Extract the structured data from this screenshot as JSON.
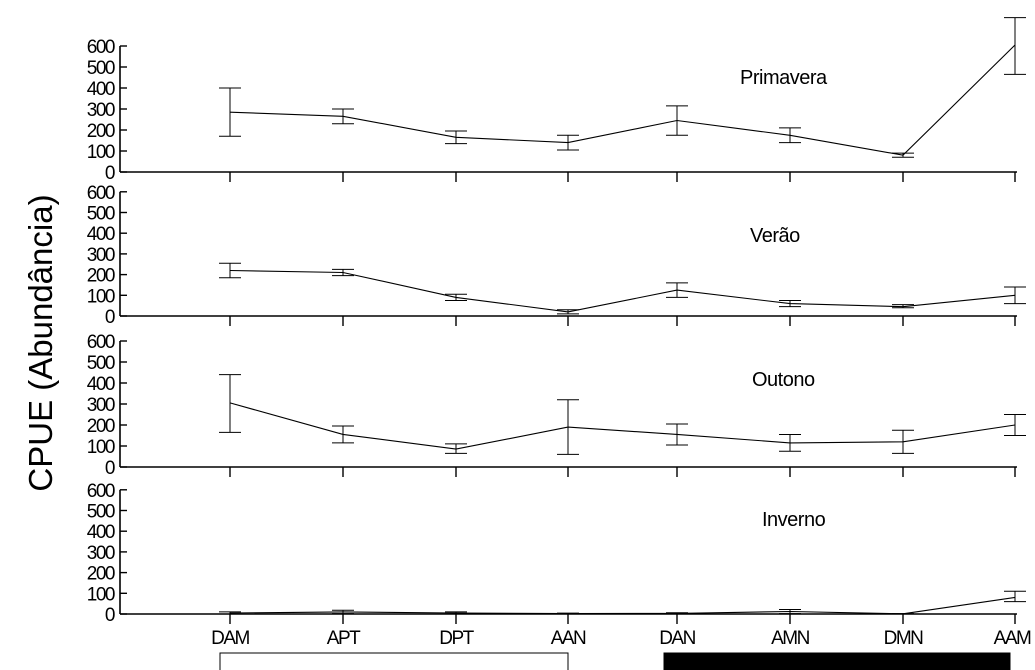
{
  "chart_data": {
    "type": "line",
    "ylabel": "CPUE (Abundância)",
    "categories": [
      "DAM",
      "APT",
      "DPT",
      "AAN",
      "DAN",
      "AMN",
      "DMN",
      "AAM"
    ],
    "yticks": [
      0,
      100,
      200,
      300,
      400,
      500,
      600
    ],
    "ylim": [
      0,
      600
    ],
    "grid": false,
    "legend": "none",
    "bottom_bars": [
      {
        "categories": [
          "DAM",
          "APT",
          "DPT",
          "AAN"
        ],
        "fill": "white"
      },
      {
        "categories": [
          "DAN",
          "AMN",
          "DMN",
          "AAM"
        ],
        "fill": "black"
      }
    ],
    "panels": [
      {
        "title": "Primavera",
        "values": [
          285,
          265,
          165,
          140,
          245,
          175,
          80,
          605
        ],
        "error_low": [
          170,
          230,
          135,
          105,
          175,
          140,
          70,
          465
        ],
        "error_high": [
          400,
          300,
          195,
          175,
          315,
          210,
          90,
          735
        ]
      },
      {
        "title": "Verão",
        "values": [
          220,
          210,
          90,
          20,
          125,
          60,
          45,
          100
        ],
        "error_low": [
          185,
          195,
          75,
          10,
          90,
          45,
          40,
          60
        ],
        "error_high": [
          255,
          225,
          105,
          30,
          160,
          75,
          55,
          140
        ]
      },
      {
        "title": "Outono",
        "values": [
          305,
          155,
          85,
          190,
          155,
          115,
          120,
          200
        ],
        "error_low": [
          165,
          115,
          65,
          60,
          105,
          75,
          65,
          150
        ],
        "error_high": [
          440,
          195,
          110,
          320,
          205,
          155,
          175,
          250
        ]
      },
      {
        "title": "Inverno",
        "values": [
          5,
          10,
          5,
          2,
          3,
          12,
          1,
          80
        ],
        "error_low": [
          0,
          2,
          0,
          0,
          0,
          2,
          0,
          60
        ],
        "error_high": [
          10,
          18,
          10,
          4,
          6,
          22,
          2,
          110
        ]
      }
    ]
  }
}
